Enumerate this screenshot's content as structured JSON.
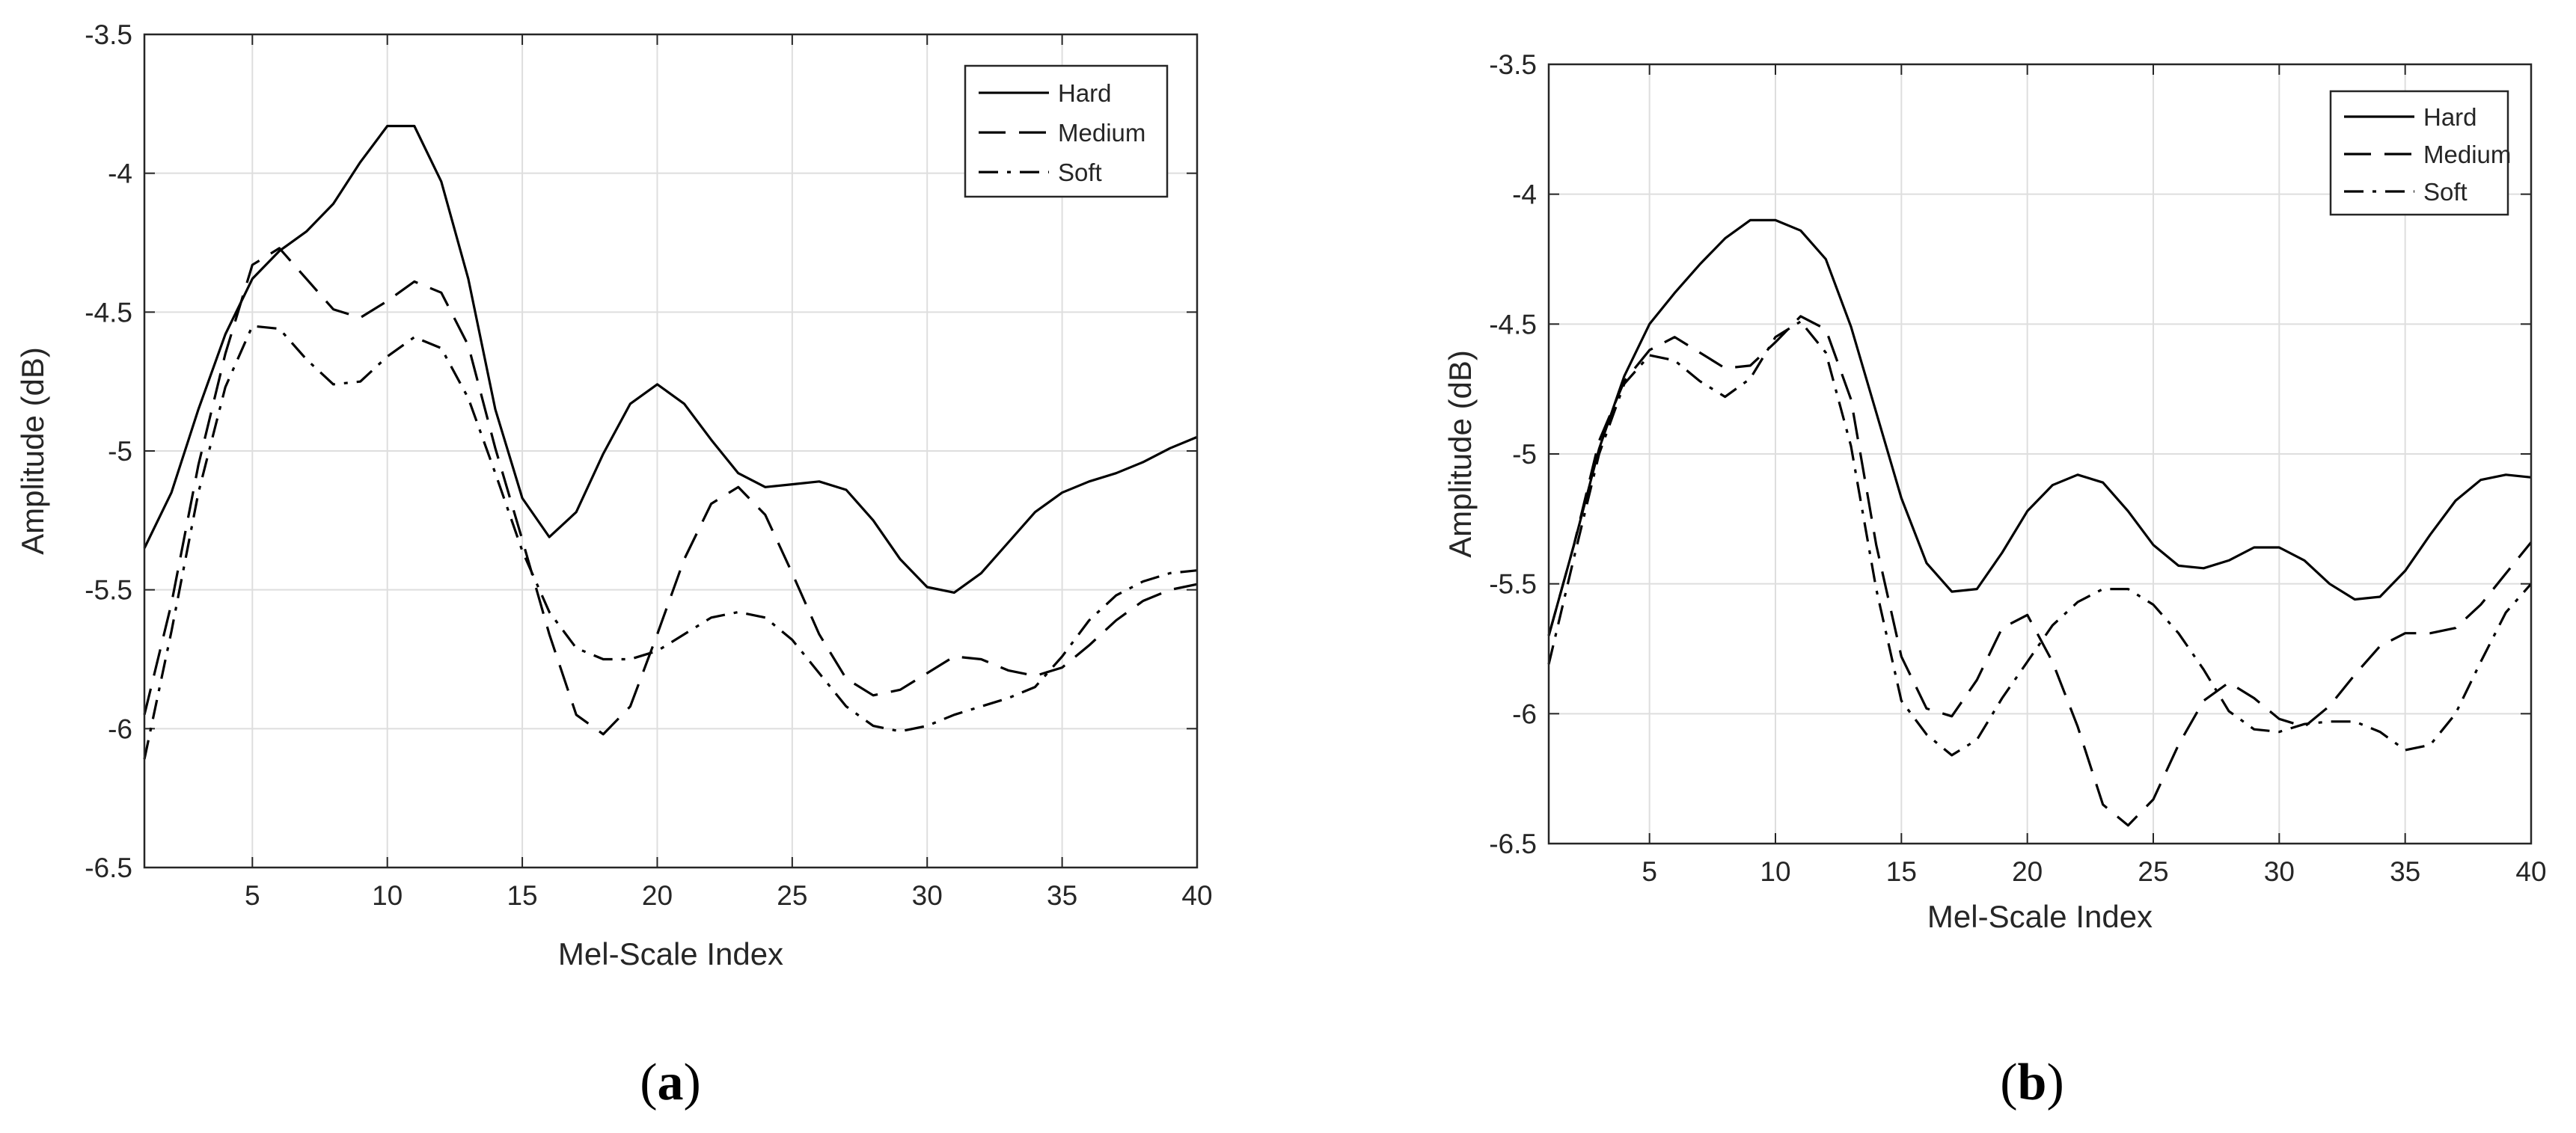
{
  "chart_data": [
    {
      "type": "line",
      "caption": "a",
      "xlabel": "Mel-Scale Index",
      "ylabel": "Amplitude (dB)",
      "xlim": [
        1,
        40
      ],
      "ylim": [
        -6.5,
        -3.5
      ],
      "xticks": [
        5,
        10,
        15,
        20,
        25,
        30,
        35,
        40
      ],
      "yticks": [
        -3.5,
        -4,
        -4.5,
        -5,
        -5.5,
        -6,
        -6.5
      ],
      "grid": true,
      "legend": "top-right",
      "x": [
        1,
        2,
        3,
        4,
        5,
        6,
        7,
        8,
        9,
        10,
        11,
        12,
        13,
        14,
        15,
        16,
        17,
        18,
        19,
        20,
        21,
        22,
        23,
        24,
        25,
        26,
        27,
        28,
        29,
        30,
        31,
        32,
        33,
        34,
        35,
        36,
        37,
        38,
        39,
        40
      ],
      "series": [
        {
          "name": "Hard",
          "dash": "solid",
          "values": [
            -5.35,
            -5.15,
            -4.85,
            -4.58,
            -4.38,
            -4.28,
            -4.21,
            -4.11,
            -3.96,
            -3.83,
            -3.83,
            -4.03,
            -4.38,
            -4.85,
            -5.17,
            -5.31,
            -5.22,
            -5.01,
            -4.83,
            -4.76,
            -4.83,
            -4.96,
            -5.08,
            -5.13,
            -5.12,
            -5.11,
            -5.14,
            -5.25,
            -5.39,
            -5.49,
            -5.51,
            -5.44,
            -5.33,
            -5.22,
            -5.15,
            -5.11,
            -5.08,
            -5.04,
            -4.99,
            -4.95
          ]
        },
        {
          "name": "Medium",
          "dash": "dashed",
          "values": [
            -5.95,
            -5.55,
            -5.05,
            -4.65,
            -4.33,
            -4.27,
            -4.38,
            -4.49,
            -4.52,
            -4.46,
            -4.39,
            -4.43,
            -4.62,
            -4.99,
            -5.32,
            -5.66,
            -5.95,
            -6.02,
            -5.92,
            -5.66,
            -5.39,
            -5.19,
            -5.13,
            -5.23,
            -5.44,
            -5.66,
            -5.82,
            -5.88,
            -5.86,
            -5.8,
            -5.74,
            -5.75,
            -5.79,
            -5.81,
            -5.78,
            -5.7,
            -5.61,
            -5.54,
            -5.5,
            -5.48
          ]
        },
        {
          "name": "Soft",
          "dash": "dashdot",
          "values": [
            -6.11,
            -5.65,
            -5.15,
            -4.77,
            -4.55,
            -4.56,
            -4.67,
            -4.76,
            -4.75,
            -4.66,
            -4.59,
            -4.63,
            -4.81,
            -5.08,
            -5.36,
            -5.58,
            -5.71,
            -5.75,
            -5.75,
            -5.72,
            -5.66,
            -5.6,
            -5.58,
            -5.6,
            -5.68,
            -5.8,
            -5.92,
            -5.99,
            -6.01,
            -5.99,
            -5.95,
            -5.92,
            -5.89,
            -5.85,
            -5.74,
            -5.61,
            -5.52,
            -5.47,
            -5.44,
            -5.43
          ]
        }
      ]
    },
    {
      "type": "line",
      "caption": "b",
      "xlabel": "Mel-Scale Index",
      "ylabel": "Amplitude (dB)",
      "xlim": [
        1,
        40
      ],
      "ylim": [
        -6.5,
        -3.5
      ],
      "xticks": [
        5,
        10,
        15,
        20,
        25,
        30,
        35,
        40
      ],
      "yticks": [
        -3.5,
        -4,
        -4.5,
        -5,
        -5.5,
        -6,
        -6.5
      ],
      "grid": true,
      "legend": "top-right",
      "x": [
        1,
        2,
        3,
        4,
        5,
        6,
        7,
        8,
        9,
        10,
        11,
        12,
        13,
        14,
        15,
        16,
        17,
        18,
        19,
        20,
        21,
        22,
        23,
        24,
        25,
        26,
        27,
        28,
        29,
        30,
        31,
        32,
        33,
        34,
        35,
        36,
        37,
        38,
        39,
        40
      ],
      "series": [
        {
          "name": "Hard",
          "dash": "solid",
          "values": [
            -5.7,
            -5.35,
            -4.98,
            -4.7,
            -4.5,
            -4.38,
            -4.27,
            -4.17,
            -4.1,
            -4.1,
            -4.14,
            -4.25,
            -4.51,
            -4.84,
            -5.17,
            -5.42,
            -5.53,
            -5.52,
            -5.38,
            -5.22,
            -5.12,
            -5.08,
            -5.11,
            -5.22,
            -5.35,
            -5.43,
            -5.44,
            -5.41,
            -5.36,
            -5.36,
            -5.41,
            -5.5,
            -5.56,
            -5.55,
            -5.45,
            -5.31,
            -5.18,
            -5.1,
            -5.08,
            -5.09
          ]
        },
        {
          "name": "Medium",
          "dash": "dashed",
          "values": [
            -5.7,
            -5.35,
            -4.95,
            -4.72,
            -4.6,
            -4.55,
            -4.61,
            -4.67,
            -4.66,
            -4.57,
            -4.47,
            -4.52,
            -4.79,
            -5.35,
            -5.78,
            -5.98,
            -6.01,
            -5.87,
            -5.67,
            -5.62,
            -5.8,
            -6.05,
            -6.35,
            -6.43,
            -6.33,
            -6.12,
            -5.95,
            -5.88,
            -5.94,
            -6.02,
            -6.05,
            -5.97,
            -5.85,
            -5.74,
            -5.69,
            -5.69,
            -5.67,
            -5.58,
            -5.46,
            -5.34
          ]
        },
        {
          "name": "Soft",
          "dash": "dashdot",
          "values": [
            -5.81,
            -5.4,
            -5.0,
            -4.73,
            -4.62,
            -4.64,
            -4.72,
            -4.78,
            -4.71,
            -4.55,
            -4.49,
            -4.61,
            -4.97,
            -5.52,
            -5.95,
            -6.08,
            -6.16,
            -6.1,
            -5.94,
            -5.8,
            -5.66,
            -5.57,
            -5.52,
            -5.52,
            -5.58,
            -5.69,
            -5.83,
            -5.99,
            -6.06,
            -6.07,
            -6.04,
            -6.03,
            -6.03,
            -6.07,
            -6.14,
            -6.12,
            -6.0,
            -5.8,
            -5.61,
            -5.5
          ]
        }
      ]
    }
  ]
}
